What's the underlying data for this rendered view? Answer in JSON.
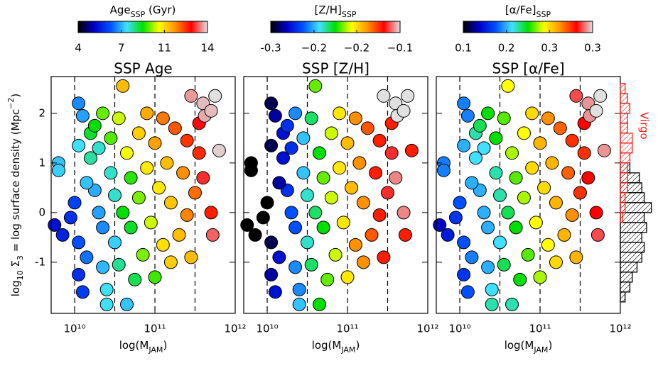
{
  "chart_data": [
    {
      "type": "scatter",
      "title": "SSP Age",
      "xlabel": [
        "log(M",
        "JAM",
        ")"
      ],
      "ylabel": [
        "log",
        "10",
        " Σ",
        "3",
        " = log surface density (Mpc",
        "−2",
        ")"
      ],
      "log_x": true,
      "xlim": [
        5100000000.0,
        1000000000000.0
      ],
      "xticks": [
        {
          "value": 10000000000.0,
          "label": "10¹⁰"
        },
        {
          "value": 100000000000.0,
          "label": "10¹¹"
        },
        {
          "value": 1000000000000.0,
          "label": "10¹²"
        }
      ],
      "ylim": [
        -2.03,
        2.74
      ],
      "yticks": [
        -1,
        0,
        1,
        2
      ],
      "vlines": [
        10000000000.0,
        31600000000.0,
        100000000000.0,
        316000000000.0
      ],
      "colormap": [
        "#000000",
        "#0000c8",
        "#0050ff",
        "#40e0ff",
        "#00e000",
        "#ffff00",
        "#ff9000",
        "#ff0000",
        "#e0e0e0"
      ],
      "colorbar": {
        "label": [
          "Age",
          "SSP",
          " (Gyr)"
        ],
        "lim": [
          4,
          14
        ],
        "ticks": [
          4,
          {
            "value": 7.33,
            "label": "7"
          },
          {
            "value": 10.67,
            "label": "11"
          },
          14
        ]
      },
      "x": [
        5620000000.0,
        7080000000.0,
        8910000000.0,
        10000000000.0,
        11200000000.0,
        6310000000.0,
        6310000000.0,
        11200000000.0,
        11200000000.0,
        12600000000.0,
        11200000000.0,
        12600000000.0,
        14100000000.0,
        15800000000.0,
        17800000000.0,
        15800000000.0,
        20000000000.0,
        17800000000.0,
        20000000000.0,
        22400000000.0,
        22400000000.0,
        25100000000.0,
        22400000000.0,
        28200000000.0,
        28200000000.0,
        31600000000.0,
        31600000000.0,
        35500000000.0,
        35500000000.0,
        39800000000.0,
        39800000000.0,
        44700000000.0,
        44700000000.0,
        50100000000.0,
        50100000000.0,
        56200000000.0,
        63100000000.0,
        63100000000.0,
        70800000000.0,
        79400000000.0,
        79400000000.0,
        89100000000.0,
        100000000000.0,
        100000000000.0,
        112000000000.0,
        126000000000.0,
        126000000000.0,
        141000000000.0,
        158000000000.0,
        158000000000.0,
        178000000000.0,
        200000000000.0,
        224000000000.0,
        251000000000.0,
        251000000000.0,
        282000000000.0,
        316000000000.0,
        355000000000.0,
        398000000000.0,
        355000000000.0,
        501000000000.0,
        525000000000.0,
        282000000000.0,
        398000000000.0,
        417000000000.0,
        562000000000.0,
        631000000000.0,
        501000000000.0,
        25100000000.0,
        14100000000.0
      ],
      "y": [
        -0.25,
        -0.45,
        -0.1,
        0.2,
        -0.6,
        1.0,
        0.85,
        1.35,
        2.2,
        1.95,
        -1.25,
        -1.6,
        -0.9,
        1.6,
        1.75,
        1.1,
        1.3,
        0.45,
        0.0,
        -0.3,
        -1.1,
        -1.55,
        2.0,
        0.8,
        1.5,
        -0.6,
        0.35,
        -1.05,
        1.9,
        2.55,
        0.0,
        -1.85,
        1.2,
        0.7,
        -0.3,
        -1.35,
        1.6,
        0.3,
        -0.85,
        2.0,
        0.9,
        -0.2,
        -1.3,
        1.4,
        0.5,
        -0.65,
        1.9,
        1.0,
        -1.0,
        0.2,
        1.7,
        -0.45,
        0.8,
        1.45,
        -0.05,
        -0.9,
        0.4,
        1.2,
        0.7,
        1.8,
        0.0,
        -0.45,
        2.35,
        2.2,
        1.95,
        2.35,
        1.25,
        2.05,
        -1.85,
        0.6
      ],
      "c": [
        5.5,
        5.8,
        6.0,
        6.3,
        6.5,
        7.5,
        7.6,
        7.8,
        7.0,
        7.2,
        6.0,
        6.2,
        6.8,
        8.8,
        9.0,
        8.2,
        8.0,
        7.3,
        7.2,
        7.0,
        7.4,
        7.8,
        9.5,
        8.0,
        9.4,
        7.6,
        8.0,
        8.3,
        10.0,
        11.0,
        9.0,
        7.5,
        10.2,
        9.2,
        8.8,
        8.6,
        10.8,
        9.6,
        9.6,
        11.2,
        10.5,
        10.0,
        9.3,
        11.3,
        10.5,
        10.6,
        11.7,
        11.0,
        10.8,
        10.9,
        12.0,
        11.0,
        11.5,
        12.3,
        11.6,
        11.0,
        11.8,
        12.4,
        13.0,
        12.8,
        12.5,
        13.3,
        13.6,
        13.8,
        13.7,
        14,
        13.9,
        13.8,
        7.8,
        7.5
      ]
    },
    {
      "type": "scatter",
      "title": "SSP [Z/H]",
      "xlabel": [
        "log(M",
        "JAM",
        ")"
      ],
      "log_x": true,
      "xlim": [
        5100000000.0,
        1000000000000.0
      ],
      "xticks": [
        {
          "value": 10000000000.0,
          "label": "10¹⁰"
        },
        {
          "value": 100000000000.0,
          "label": "10¹¹"
        },
        {
          "value": 1000000000000.0,
          "label": "10¹²"
        }
      ],
      "ylim": [
        -2.03,
        2.74
      ],
      "yticks": [
        -1,
        0,
        1,
        2
      ],
      "vlines": [
        10000000000.0,
        31600000000.0,
        100000000000.0,
        316000000000.0
      ],
      "colormap": [
        "#000000",
        "#0000c8",
        "#0050ff",
        "#40e0ff",
        "#00e000",
        "#ffff00",
        "#ff9000",
        "#ff0000",
        "#e0e0e0"
      ],
      "colorbar": {
        "label": [
          "[Z/H]",
          "SSP",
          ""
        ],
        "lim": [
          -0.3,
          -0.1
        ],
        "ticks": [
          -0.3,
          {
            "value": -0.233,
            "label": "−0.2"
          },
          {
            "value": -0.167,
            "label": "−0.2"
          },
          {
            "value": -0.1,
            "label": "−0.1"
          }
        ]
      },
      "x": [
        5620000000.0,
        7080000000.0,
        8910000000.0,
        10000000000.0,
        11200000000.0,
        6310000000.0,
        6310000000.0,
        11200000000.0,
        11200000000.0,
        12600000000.0,
        11200000000.0,
        12600000000.0,
        14100000000.0,
        15800000000.0,
        17800000000.0,
        15800000000.0,
        20000000000.0,
        17800000000.0,
        20000000000.0,
        22400000000.0,
        22400000000.0,
        25100000000.0,
        22400000000.0,
        28200000000.0,
        28200000000.0,
        31600000000.0,
        31600000000.0,
        35500000000.0,
        35500000000.0,
        39800000000.0,
        39800000000.0,
        44700000000.0,
        44700000000.0,
        50100000000.0,
        50100000000.0,
        56200000000.0,
        63100000000.0,
        63100000000.0,
        70800000000.0,
        79400000000.0,
        79400000000.0,
        89100000000.0,
        100000000000.0,
        100000000000.0,
        112000000000.0,
        126000000000.0,
        126000000000.0,
        141000000000.0,
        158000000000.0,
        158000000000.0,
        178000000000.0,
        200000000000.0,
        224000000000.0,
        251000000000.0,
        251000000000.0,
        282000000000.0,
        316000000000.0,
        355000000000.0,
        398000000000.0,
        355000000000.0,
        501000000000.0,
        525000000000.0,
        282000000000.0,
        398000000000.0,
        417000000000.0,
        562000000000.0,
        631000000000.0,
        501000000000.0,
        25100000000.0,
        14100000000.0
      ],
      "y": [
        -0.25,
        -0.45,
        -0.1,
        0.2,
        -0.6,
        1.0,
        0.85,
        1.35,
        2.2,
        1.95,
        -1.25,
        -1.6,
        -0.9,
        1.6,
        1.75,
        1.1,
        1.3,
        0.45,
        0.0,
        -0.3,
        -1.1,
        -1.55,
        2.0,
        0.8,
        1.5,
        -0.6,
        0.35,
        -1.05,
        1.9,
        2.55,
        0.0,
        -1.85,
        1.2,
        0.7,
        -0.3,
        -1.35,
        1.6,
        0.3,
        -0.85,
        2.0,
        0.9,
        -0.2,
        -1.3,
        1.4,
        0.5,
        -0.65,
        1.9,
        1.0,
        -1.0,
        0.2,
        1.7,
        -0.45,
        0.8,
        1.45,
        -0.05,
        -0.9,
        0.4,
        1.2,
        0.7,
        1.8,
        0.0,
        -0.45,
        2.35,
        2.2,
        1.95,
        2.35,
        1.25,
        2.05,
        -1.85,
        0.6
      ],
      "c": [
        -0.3,
        -0.3,
        -0.3,
        -0.3,
        -0.29,
        -0.3,
        -0.3,
        -0.29,
        -0.29,
        -0.28,
        -0.28,
        -0.27,
        -0.27,
        -0.27,
        -0.26,
        -0.27,
        -0.26,
        -0.26,
        -0.25,
        -0.25,
        -0.24,
        -0.24,
        -0.24,
        -0.23,
        -0.23,
        -0.22,
        -0.22,
        -0.21,
        -0.21,
        -0.19,
        -0.21,
        -0.2,
        -0.2,
        -0.19,
        -0.2,
        -0.19,
        -0.18,
        -0.18,
        -0.18,
        -0.17,
        -0.17,
        -0.17,
        -0.17,
        -0.16,
        -0.16,
        -0.15,
        -0.15,
        -0.15,
        -0.15,
        -0.15,
        -0.14,
        -0.14,
        -0.13,
        -0.13,
        -0.13,
        -0.13,
        -0.12,
        -0.12,
        -0.11,
        -0.13,
        -0.11,
        -0.13,
        -0.1,
        -0.1,
        -0.1,
        -0.1,
        -0.13,
        -0.1,
        -0.23,
        -0.28
      ]
    },
    {
      "type": "scatter",
      "title": "SSP [α/Fe]",
      "xlabel": [
        "log(M",
        "JAM",
        ")"
      ],
      "log_x": true,
      "xlim": [
        5100000000.0,
        1000000000000.0
      ],
      "xticks": [
        {
          "value": 10000000000.0,
          "label": "10¹⁰"
        },
        {
          "value": 100000000000.0,
          "label": "10¹¹"
        },
        {
          "value": 1000000000000.0,
          "label": "10¹²"
        }
      ],
      "ylim": [
        -2.03,
        2.74
      ],
      "yticks": [
        -1,
        0,
        1,
        2
      ],
      "vlines": [
        10000000000.0,
        31600000000.0,
        100000000000.0,
        316000000000.0
      ],
      "colormap": [
        "#000000",
        "#0000c8",
        "#0050ff",
        "#40e0ff",
        "#00e000",
        "#ffff00",
        "#ff9000",
        "#ff0000",
        "#e0e0e0"
      ],
      "colorbar": {
        "label": [
          "[α/Fe]",
          "SSP",
          ""
        ],
        "lim": [
          0.1,
          0.34
        ],
        "ticks": [
          0.1,
          {
            "value": 0.18,
            "label": "0.2"
          },
          {
            "value": 0.26,
            "label": "0.3"
          },
          {
            "value": 0.34,
            "label": "0.3"
          }
        ]
      },
      "x": [
        5620000000.0,
        7080000000.0,
        8910000000.0,
        10000000000.0,
        11200000000.0,
        6310000000.0,
        6310000000.0,
        11200000000.0,
        11200000000.0,
        12600000000.0,
        11200000000.0,
        12600000000.0,
        14100000000.0,
        15800000000.0,
        17800000000.0,
        15800000000.0,
        20000000000.0,
        17800000000.0,
        20000000000.0,
        22400000000.0,
        22400000000.0,
        25100000000.0,
        22400000000.0,
        28200000000.0,
        28200000000.0,
        31600000000.0,
        31600000000.0,
        35500000000.0,
        35500000000.0,
        39800000000.0,
        39800000000.0,
        44700000000.0,
        44700000000.0,
        50100000000.0,
        50100000000.0,
        56200000000.0,
        63100000000.0,
        63100000000.0,
        70800000000.0,
        79400000000.0,
        79400000000.0,
        89100000000.0,
        100000000000.0,
        100000000000.0,
        112000000000.0,
        126000000000.0,
        126000000000.0,
        141000000000.0,
        158000000000.0,
        158000000000.0,
        178000000000.0,
        200000000000.0,
        224000000000.0,
        251000000000.0,
        251000000000.0,
        282000000000.0,
        316000000000.0,
        355000000000.0,
        398000000000.0,
        355000000000.0,
        501000000000.0,
        525000000000.0,
        282000000000.0,
        398000000000.0,
        417000000000.0,
        562000000000.0,
        631000000000.0,
        501000000000.0,
        25100000000.0,
        14100000000.0
      ],
      "y": [
        -0.25,
        -0.45,
        -0.1,
        0.2,
        -0.6,
        1.0,
        0.85,
        1.35,
        2.2,
        1.95,
        -1.25,
        -1.6,
        -0.9,
        1.6,
        1.75,
        1.1,
        1.3,
        0.45,
        0.0,
        -0.3,
        -1.1,
        -1.55,
        2.0,
        0.8,
        1.5,
        -0.6,
        0.35,
        -1.05,
        1.9,
        2.55,
        0.0,
        -1.85,
        1.2,
        0.7,
        -0.3,
        -1.35,
        1.6,
        0.3,
        -0.85,
        2.0,
        0.9,
        -0.2,
        -1.3,
        1.4,
        0.5,
        -0.65,
        1.9,
        1.0,
        -1.0,
        0.2,
        1.7,
        -0.45,
        0.8,
        1.45,
        -0.05,
        -0.9,
        0.4,
        1.2,
        0.7,
        1.8,
        0.0,
        -0.45,
        2.35,
        2.2,
        1.95,
        2.35,
        1.25,
        2.05,
        -1.85,
        0.6
      ],
      "c": [
        0.13,
        0.14,
        0.15,
        0.16,
        0.16,
        0.17,
        0.17,
        0.18,
        0.17,
        0.17,
        0.15,
        0.16,
        0.17,
        0.2,
        0.21,
        0.19,
        0.19,
        0.18,
        0.18,
        0.18,
        0.18,
        0.19,
        0.22,
        0.2,
        0.22,
        0.19,
        0.2,
        0.21,
        0.23,
        0.25,
        0.21,
        0.2,
        0.24,
        0.23,
        0.22,
        0.22,
        0.25,
        0.24,
        0.23,
        0.26,
        0.26,
        0.25,
        0.24,
        0.27,
        0.26,
        0.25,
        0.28,
        0.27,
        0.26,
        0.27,
        0.29,
        0.27,
        0.29,
        0.3,
        0.28,
        0.27,
        0.3,
        0.3,
        0.31,
        0.31,
        0.31,
        0.32,
        0.32,
        0.33,
        0.33,
        0.34,
        0.33,
        0.34,
        0.2,
        0.18
      ]
    },
    {
      "type": "histogram",
      "orientation": "horizontal",
      "xlim": [
        0,
        14
      ],
      "ylim": [
        -2.03,
        2.74
      ],
      "series": [
        {
          "color": "#000000",
          "bins": [
            -1.8,
            -1.6,
            -1.4,
            -1.2,
            -1.0,
            -0.8,
            -0.6,
            -0.4,
            -0.2,
            0.0,
            0.2,
            0.4,
            0.6,
            0.8,
            1.0
          ],
          "counts": [
            2,
            4,
            5,
            7,
            9,
            10,
            9,
            11,
            10,
            13,
            10,
            9,
            8,
            4
          ]
        },
        {
          "name": "Virgo",
          "color": "#e8201a",
          "bins": [
            -0.2,
            0.0,
            0.2,
            0.4,
            0.6,
            0.8,
            1.0,
            1.2,
            1.4,
            1.6,
            1.8,
            2.0,
            2.2,
            2.4,
            2.6
          ],
          "counts": [
            1,
            2,
            2,
            3,
            3,
            3,
            4,
            5,
            5,
            3,
            3,
            4,
            3,
            2
          ]
        }
      ]
    }
  ]
}
